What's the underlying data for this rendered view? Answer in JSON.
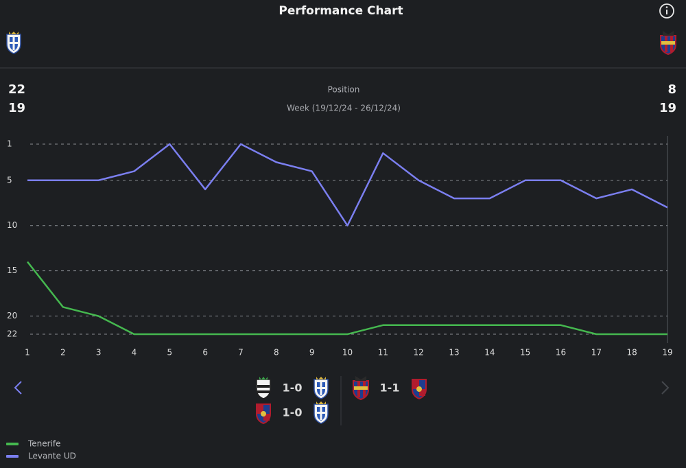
{
  "header": {
    "title": "Performance Chart"
  },
  "summary": {
    "home": {
      "position": 22,
      "matches": 19
    },
    "label": "Position",
    "period": "Week (19/12/24 - 26/12/24)",
    "away": {
      "position": 8,
      "matches": 19
    }
  },
  "chart_data": {
    "type": "line",
    "x": [
      1,
      2,
      3,
      4,
      5,
      6,
      7,
      8,
      9,
      10,
      11,
      12,
      13,
      14,
      15,
      16,
      17,
      18,
      19
    ],
    "xlim": [
      1,
      19
    ],
    "xticks": [
      1,
      2,
      3,
      4,
      5,
      6,
      7,
      8,
      9,
      10,
      11,
      12,
      13,
      14,
      15,
      16,
      17,
      18,
      19
    ],
    "ylim": [
      1,
      22
    ],
    "yticks": [
      1,
      5,
      10,
      15,
      20,
      22
    ],
    "y_inverted": true,
    "grid": true,
    "legend": "bottom-left",
    "series": [
      {
        "name": "Tenerife",
        "color": "#45b84f",
        "values": [
          14,
          19,
          20,
          22,
          22,
          22,
          22,
          22,
          22,
          22,
          21,
          21,
          21,
          21,
          21,
          21,
          22,
          22,
          22
        ]
      },
      {
        "name": "Levante UD",
        "color": "#7b7ff0",
        "values": [
          5,
          5,
          5,
          4,
          1,
          6,
          1,
          3,
          4,
          10,
          2,
          5,
          7,
          7,
          5,
          5,
          7,
          6,
          8
        ]
      }
    ]
  },
  "matches": {
    "home": [
      {
        "score": "1-0"
      },
      {
        "score": "1-0"
      }
    ],
    "away": [
      {
        "score": "1-1"
      }
    ]
  }
}
